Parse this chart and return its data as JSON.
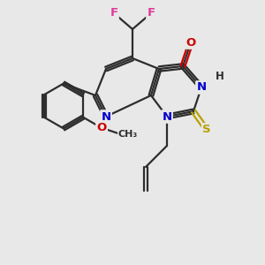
{
  "bg_color": "#e8e8e8",
  "bond_color": "#2d2d2d",
  "bond_lw": 1.5,
  "atom_colors": {
    "F": "#e0399a",
    "O": "#cc0000",
    "N": "#0000cc",
    "S": "#b8a000",
    "C": "#2d2d2d",
    "H": "#2d2d2d"
  },
  "font_size": 9.5,
  "font_size_small": 8.5
}
